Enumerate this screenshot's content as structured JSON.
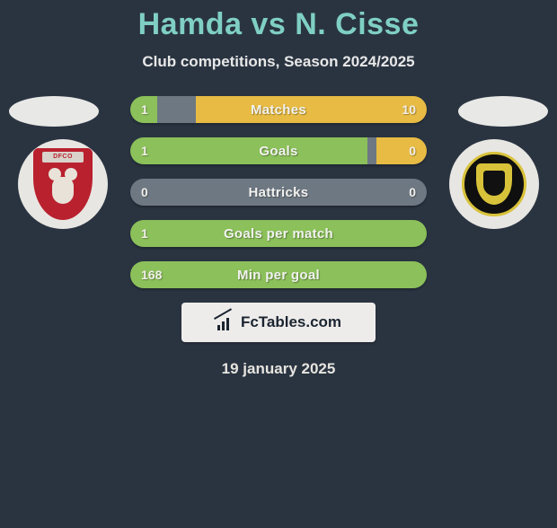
{
  "title": "Hamda vs N. Cisse",
  "subtitle": "Club competitions, Season 2024/2025",
  "date": "19 january 2025",
  "brand": "FcTables.com",
  "colors": {
    "background": "#2a3441",
    "title": "#7fcfc4",
    "team_a": "#8bc05a",
    "team_b": "#e7bb44",
    "neutral": "#6e7883"
  },
  "badges": {
    "left": {
      "label": "DFCO",
      "bg": "#b9212e"
    },
    "right": {
      "bg": "#0f0f0f",
      "accent": "#d8c23a"
    }
  },
  "stats": [
    {
      "label": "Matches",
      "left_value": "1",
      "right_value": "10",
      "segments": [
        {
          "color": "#8bc05a",
          "width_pct": 9
        },
        {
          "color": "#6e7883",
          "width_pct": 13
        },
        {
          "color": "#e7bb44",
          "width_pct": 78
        }
      ]
    },
    {
      "label": "Goals",
      "left_value": "1",
      "right_value": "0",
      "segments": [
        {
          "color": "#8bc05a",
          "width_pct": 80
        },
        {
          "color": "#6e7883",
          "width_pct": 3
        },
        {
          "color": "#e7bb44",
          "width_pct": 17
        }
      ]
    },
    {
      "label": "Hattricks",
      "left_value": "0",
      "right_value": "0",
      "segments": [
        {
          "color": "#6e7883",
          "width_pct": 100
        }
      ]
    },
    {
      "label": "Goals per match",
      "left_value": "1",
      "right_value": "",
      "segments": [
        {
          "color": "#8bc05a",
          "width_pct": 100
        }
      ]
    },
    {
      "label": "Min per goal",
      "left_value": "168",
      "right_value": "",
      "segments": [
        {
          "color": "#8bc05a",
          "width_pct": 100
        }
      ]
    }
  ]
}
